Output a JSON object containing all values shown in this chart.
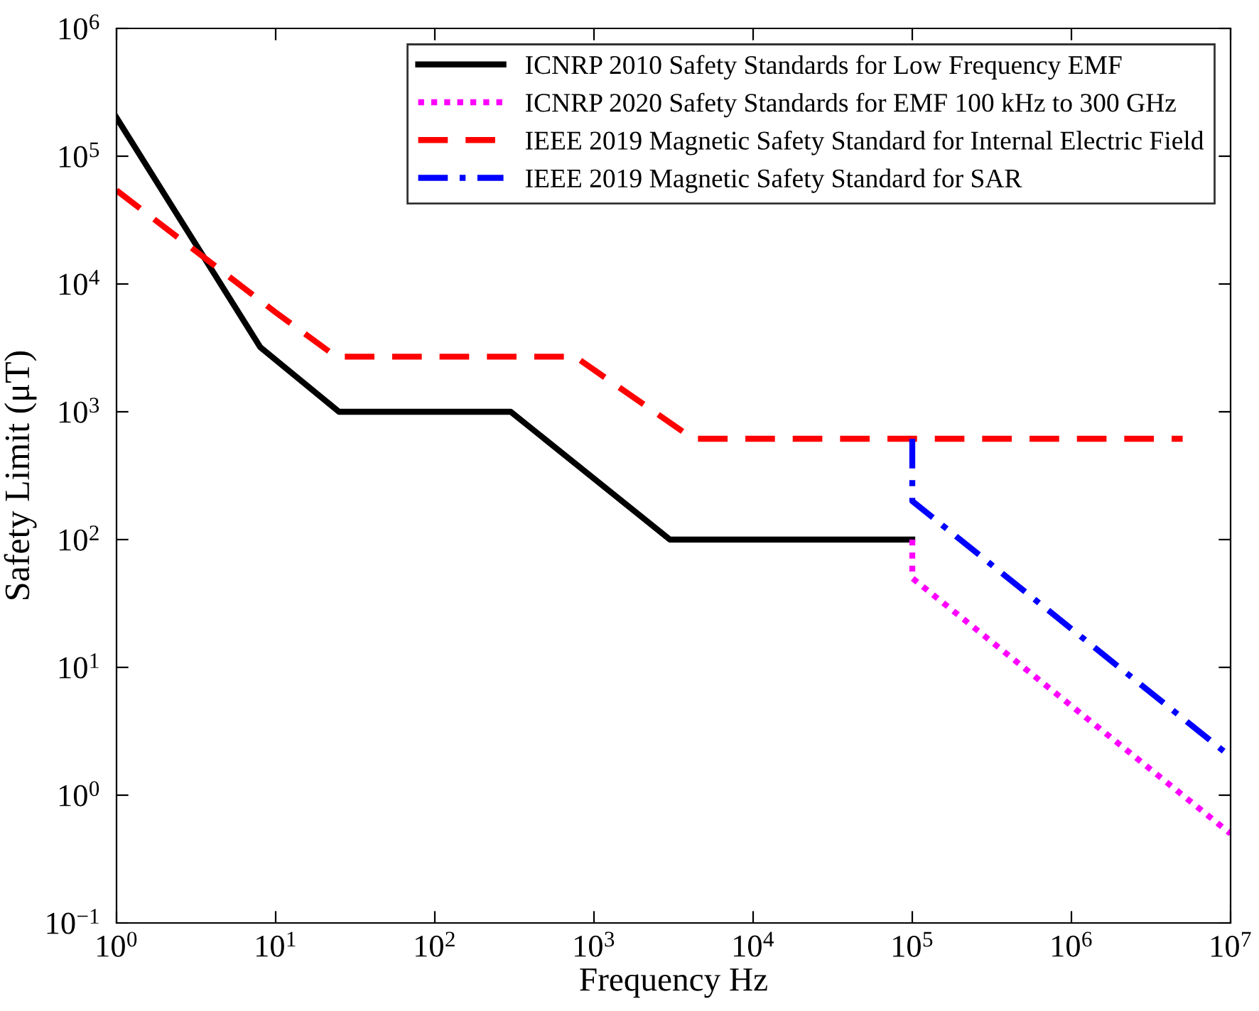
{
  "chart_data": {
    "type": "line",
    "xlabel": "Frequency Hz",
    "ylabel": "Safety Limit (μT)",
    "log": "xy",
    "xlim": [
      1,
      10000000
    ],
    "ylim": [
      0.1,
      1000000
    ],
    "xticks": [
      {
        "value": 1,
        "label": "10$^{0}$"
      },
      {
        "value": 10,
        "label": "10$^{1}$"
      },
      {
        "value": 100,
        "label": "10$^{2}$"
      },
      {
        "value": 1000,
        "label": "10$^{3}$"
      },
      {
        "value": 10000,
        "label": "10$^{4}$"
      },
      {
        "value": 100000,
        "label": "10$^{5}$"
      },
      {
        "value": 1000000,
        "label": "10$^{6}$"
      },
      {
        "value": 10000000,
        "label": "10$^{7}$"
      }
    ],
    "yticks": [
      {
        "value": 0.1,
        "label": "10$^{−1}$"
      },
      {
        "value": 1,
        "label": "10$^{0}$"
      },
      {
        "value": 10,
        "label": "10$^{1}$"
      },
      {
        "value": 100,
        "label": "10$^{2}$"
      },
      {
        "value": 1000,
        "label": "10$^{3}$"
      },
      {
        "value": 10000,
        "label": "10$^{4}$"
      },
      {
        "value": 100000,
        "label": "10$^{5}$"
      },
      {
        "value": 1000000,
        "label": "10$^{6}$"
      }
    ],
    "grid": false,
    "legend": "top right",
    "marker": "none",
    "series": [
      {
        "name": "ICNRP 2010 Safety Standards for Low Frequency EMF",
        "color": "#000000",
        "line_style": "solid",
        "x": [
          1,
          8,
          25,
          300,
          3000,
          100000
        ],
        "values": [
          200000,
          3200,
          1000,
          1000,
          100,
          100
        ]
      },
      {
        "name": "ICNRP 2020 Safety Standards for EMF 100 kHz to 300 GHz",
        "color": "#ff00ff",
        "line_style": "dotted",
        "x": [
          100000,
          100000,
          10000000
        ],
        "values": [
          100,
          50,
          0.5
        ]
      },
      {
        "name": "IEEE 2019 Magnetic Safety Standard for Internal Electric Field",
        "color": "#ff0000",
        "line_style": "dashed",
        "x": [
          1,
          10,
          24,
          760,
          4200,
          5000000
        ],
        "values": [
          54000,
          6000,
          2700,
          2700,
          615,
          615
        ]
      },
      {
        "name": "IEEE 2019 Magnetic Safety Standard for SAR",
        "color": "#0000ff",
        "line_style": "dashdot",
        "x": [
          100000,
          100000,
          10000000
        ],
        "values": [
          615,
          200,
          2
        ]
      }
    ]
  }
}
